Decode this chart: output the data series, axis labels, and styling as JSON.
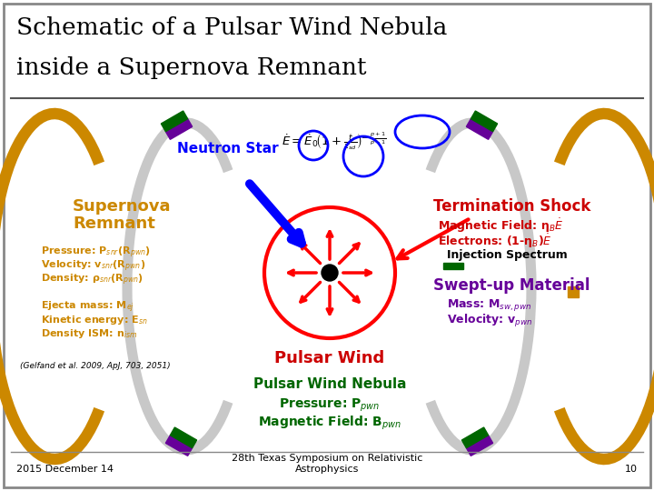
{
  "bg": "#ffffff",
  "title1": "Schematic of a Pulsar Wind Nebula",
  "title2": "inside a Supernova Remnant",
  "neutron_star": "Neutron Star",
  "ns_color": "#0000ff",
  "snr_title": "Supernova\nRemnant",
  "snr_color": "#cc8800",
  "snr_p": "Pressure: P$_{snr}$(R$_{pwn}$)",
  "snr_v": "Velocity: v$_{snr}$(R$_{pwn}$)",
  "snr_d": "Density: ρ$_{snr}$(R$_{pwn}$)",
  "ejecta": "Ejecta mass: M$_{ej}$",
  "kinetic": "Kinetic energy: E$_{sn}$",
  "density_ism": "Density ISM: n$_{ism}$",
  "ref": "(Gelfand et al. 2009, ApJ, 703, 2051)",
  "ts_title": "Termination Shock",
  "ts_color": "#cc0000",
  "ts_mag": "Magnetic Field: η$_B$$\\dot{E}$",
  "ts_elec": "Electrons: (1-η$_B$)$\\dot{E}$",
  "ts_inj": "Injection Spectrum",
  "swept_title": "Swept-up Material",
  "swept_color": "#660099",
  "swept_mass": "Mass: M$_{sw,pwn}$",
  "swept_vel": "Velocity: v$_{pwn}$",
  "pw_label": "Pulsar Wind",
  "pw_color": "#cc0000",
  "pwn_title": "Pulsar Wind Nebula",
  "pwn_color": "#006600",
  "pwn_p": "Pressure: P$_{pwn}$",
  "pwn_b": "Magnetic Field: B$_{pwn}$",
  "footer_l": "2015 December 14",
  "footer_c": "28th Texas Symposium on Relativistic\nAstrophysics",
  "footer_r": "10",
  "orange": "#cc8800",
  "purple": "#660099",
  "green_stripe": "#006600"
}
